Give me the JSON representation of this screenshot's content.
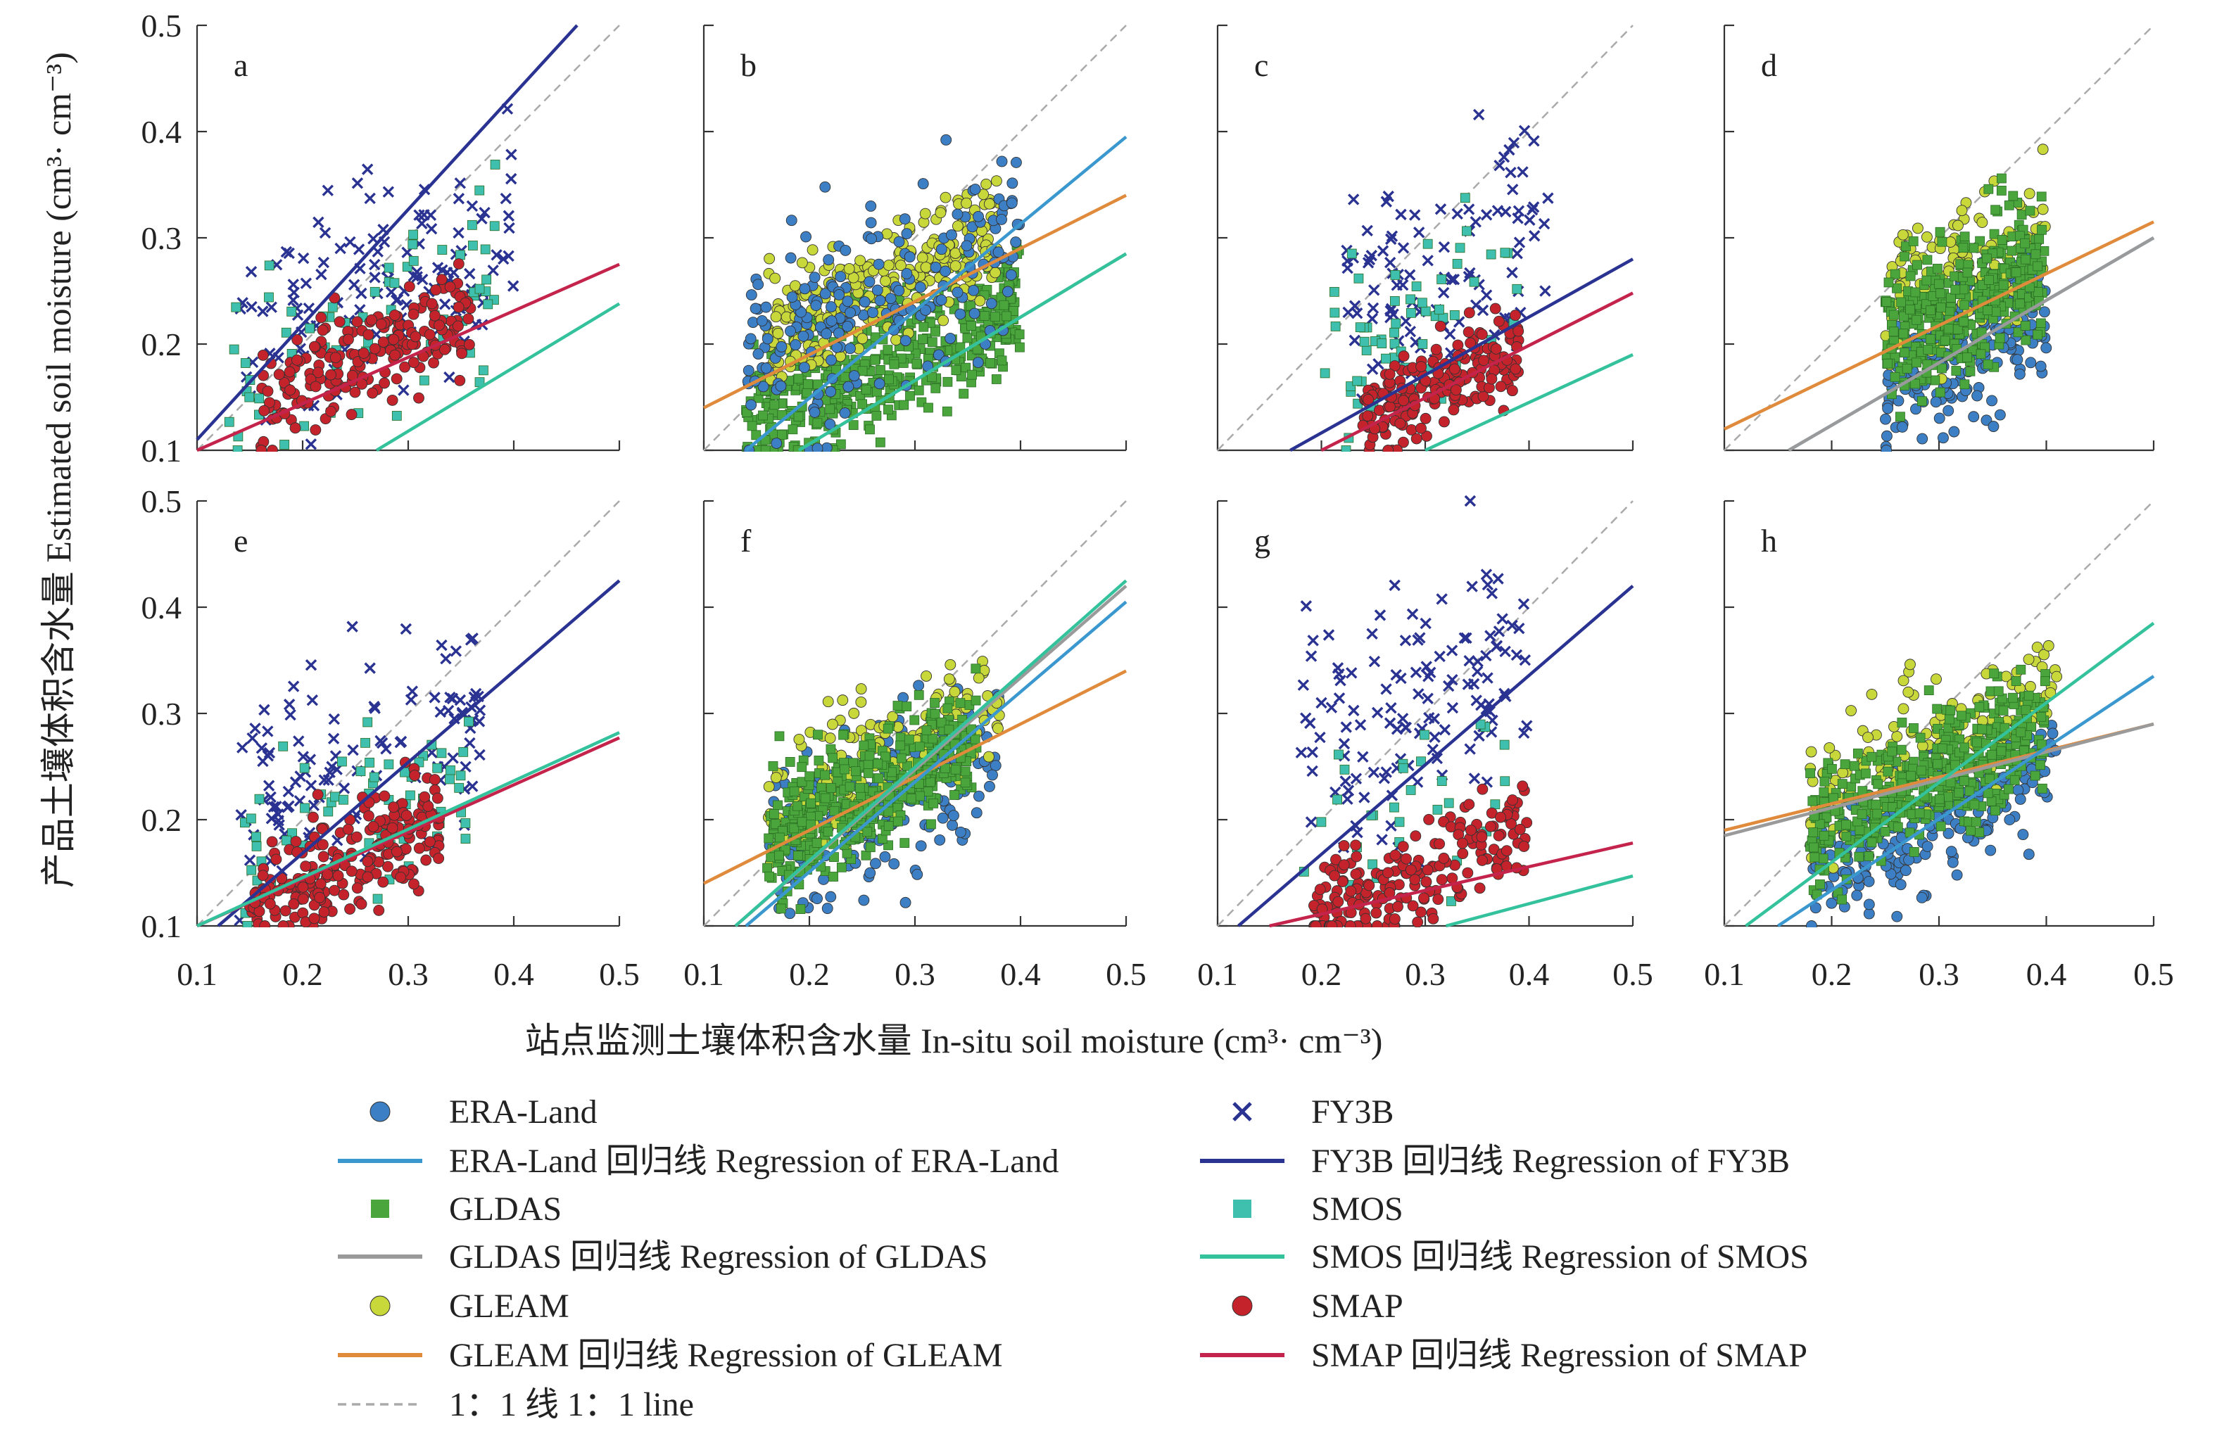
{
  "colors": {
    "ERA-Land": "#3d7fc4",
    "ERA-Land-line": "#3b98cf",
    "GLDAS": "#4aa63c",
    "GLDAS-line": "#9a9a9a",
    "GLEAM": "#c8d83a",
    "GLEAM-line": "#e08a3c",
    "FY3B": "#2a3391",
    "FY3B-line": "#2a3391",
    "SMOS": "#3fbfae",
    "SMOS-line": "#33c29c",
    "SMAP": "#c4232b",
    "SMAP-line": "#c4234b",
    "one-to-one": "#aaaaaa"
  },
  "axes": {
    "ylabel": "产品土壤体积含水量 Estimated soil moisture (cm³· cm⁻³)",
    "xlabel": "站点监测土壤体积含水量 In-situ soil moisture (cm³· cm⁻³)",
    "xlim": [
      0.1,
      0.5
    ],
    "ylim": [
      0.1,
      0.5
    ],
    "xticks": [
      "0.1",
      "0.2",
      "0.3",
      "0.4",
      "0.5"
    ],
    "yticks": [
      "0.1",
      "0.2",
      "0.3",
      "0.4",
      "0.5"
    ]
  },
  "legend": {
    "items": [
      {
        "key": "ERA-Land",
        "marker": "circle",
        "label": "ERA-Land"
      },
      {
        "key": "FY3B",
        "marker": "cross",
        "label": "FY3B"
      },
      {
        "key": "ERA-Land-line",
        "marker": "line",
        "label": "ERA-Land 回归线 Regression of ERA-Land"
      },
      {
        "key": "FY3B-line",
        "marker": "line",
        "label": "FY3B 回归线 Regression of FY3B"
      },
      {
        "key": "GLDAS",
        "marker": "square",
        "label": "GLDAS"
      },
      {
        "key": "SMOS",
        "marker": "square",
        "label": "SMOS"
      },
      {
        "key": "GLDAS-line",
        "marker": "line",
        "label": "GLDAS 回归线 Regression of GLDAS"
      },
      {
        "key": "SMOS-line",
        "marker": "line",
        "label": "SMOS 回归线 Regression of SMOS"
      },
      {
        "key": "GLEAM",
        "marker": "circle",
        "label": "GLEAM"
      },
      {
        "key": "SMAP",
        "marker": "circle",
        "label": "SMAP"
      },
      {
        "key": "GLEAM-line",
        "marker": "line",
        "label": "GLEAM 回归线 Regression of GLEAM"
      },
      {
        "key": "SMAP-line",
        "marker": "line",
        "label": "SMAP 回归线 Regression of SMAP"
      },
      {
        "key": "one-to-one",
        "marker": "dash",
        "label": "1：1 线 1：1 line"
      }
    ]
  },
  "chart_data": [
    {
      "type": "scatter",
      "label": "a",
      "xlim": [
        0.1,
        0.5
      ],
      "ylim": [
        0.1,
        0.5
      ],
      "clouds": [
        {
          "key": "FY3B",
          "marker": "cross",
          "n": 130,
          "xr": [
            0.14,
            0.4
          ],
          "center": 0.25,
          "spread": 0.1
        },
        {
          "key": "SMOS",
          "marker": "square",
          "n": 70,
          "xr": [
            0.13,
            0.39
          ],
          "center": 0.22,
          "spread": 0.09
        },
        {
          "key": "SMAP",
          "marker": "circle",
          "n": 200,
          "xr": [
            0.16,
            0.36
          ],
          "center": 0.19,
          "spread": 0.05
        }
      ],
      "regressions": [
        {
          "key": "FY3B-line",
          "points": [
            [
              0.1,
              0.11
            ],
            [
              0.46,
              0.5
            ]
          ]
        },
        {
          "key": "SMAP-line",
          "points": [
            [
              0.1,
              0.1
            ],
            [
              0.5,
              0.275
            ]
          ]
        },
        {
          "key": "SMOS-line",
          "points": [
            [
              0.27,
              0.1
            ],
            [
              0.5,
              0.238
            ]
          ]
        }
      ]
    },
    {
      "type": "scatter",
      "label": "b",
      "xlim": [
        0.1,
        0.5
      ],
      "ylim": [
        0.1,
        0.5
      ],
      "clouds": [
        {
          "key": "GLDAS",
          "marker": "square",
          "n": 450,
          "xr": [
            0.14,
            0.4
          ],
          "center": 0.18,
          "spread": 0.06
        },
        {
          "key": "GLEAM",
          "marker": "circle",
          "n": 260,
          "xr": [
            0.16,
            0.38
          ],
          "center": 0.26,
          "spread": 0.06
        },
        {
          "key": "ERA-Land",
          "marker": "circle",
          "n": 200,
          "xr": [
            0.14,
            0.4
          ],
          "center": 0.24,
          "spread": 0.09
        }
      ],
      "regressions": [
        {
          "key": "GLEAM-line",
          "points": [
            [
              0.1,
              0.14
            ],
            [
              0.5,
              0.34
            ]
          ]
        },
        {
          "key": "ERA-Land-line",
          "points": [
            [
              0.14,
              0.1
            ],
            [
              0.5,
              0.395
            ]
          ]
        },
        {
          "key": "GLDAS-line",
          "points": [
            [
              0.19,
              0.1
            ],
            [
              0.5,
              0.285
            ]
          ]
        },
        {
          "key": "SMOS-line",
          "points": [
            [
              0.19,
              0.1
            ],
            [
              0.5,
              0.285
            ]
          ]
        }
      ]
    },
    {
      "type": "scatter",
      "label": "c",
      "xlim": [
        0.1,
        0.5
      ],
      "ylim": [
        0.1,
        0.5
      ],
      "clouds": [
        {
          "key": "FY3B",
          "marker": "cross",
          "n": 110,
          "xr": [
            0.22,
            0.42
          ],
          "center": 0.28,
          "spread": 0.1
        },
        {
          "key": "SMOS",
          "marker": "square",
          "n": 60,
          "xr": [
            0.2,
            0.4
          ],
          "center": 0.22,
          "spread": 0.1
        },
        {
          "key": "SMAP",
          "marker": "circle",
          "n": 200,
          "xr": [
            0.24,
            0.39
          ],
          "center": 0.16,
          "spread": 0.04
        }
      ],
      "regressions": [
        {
          "key": "FY3B-line",
          "points": [
            [
              0.17,
              0.1
            ],
            [
              0.5,
              0.28
            ]
          ]
        },
        {
          "key": "SMAP-line",
          "points": [
            [
              0.2,
              0.1
            ],
            [
              0.5,
              0.248
            ]
          ]
        },
        {
          "key": "SMOS-line",
          "points": [
            [
              0.3,
              0.1
            ],
            [
              0.5,
              0.19
            ]
          ]
        }
      ]
    },
    {
      "type": "scatter",
      "label": "d",
      "xlim": [
        0.1,
        0.5
      ],
      "ylim": [
        0.1,
        0.5
      ],
      "clouds": [
        {
          "key": "ERA-Land",
          "marker": "circle",
          "n": 220,
          "xr": [
            0.25,
            0.4
          ],
          "center": 0.2,
          "spread": 0.07
        },
        {
          "key": "GLEAM",
          "marker": "circle",
          "n": 150,
          "xr": [
            0.25,
            0.4
          ],
          "center": 0.27,
          "spread": 0.07
        },
        {
          "key": "GLDAS",
          "marker": "square",
          "n": 350,
          "xr": [
            0.25,
            0.4
          ],
          "center": 0.24,
          "spread": 0.07
        }
      ],
      "regressions": [
        {
          "key": "GLEAM-line",
          "points": [
            [
              0.1,
              0.12
            ],
            [
              0.5,
              0.315
            ]
          ]
        },
        {
          "key": "ERA-Land-line",
          "points": [
            [
              0.16,
              0.1
            ],
            [
              0.5,
              0.3
            ]
          ]
        },
        {
          "key": "GLDAS-line",
          "points": [
            [
              0.16,
              0.1
            ],
            [
              0.5,
              0.3
            ]
          ]
        }
      ]
    },
    {
      "type": "scatter",
      "label": "e",
      "xlim": [
        0.1,
        0.5
      ],
      "ylim": [
        0.1,
        0.5
      ],
      "clouds": [
        {
          "key": "FY3B",
          "marker": "cross",
          "n": 110,
          "xr": [
            0.14,
            0.37
          ],
          "center": 0.26,
          "spread": 0.1
        },
        {
          "key": "SMOS",
          "marker": "square",
          "n": 70,
          "xr": [
            0.14,
            0.36
          ],
          "center": 0.2,
          "spread": 0.08
        },
        {
          "key": "SMAP",
          "marker": "circle",
          "n": 220,
          "xr": [
            0.15,
            0.33
          ],
          "center": 0.16,
          "spread": 0.05
        }
      ],
      "regressions": [
        {
          "key": "FY3B-line",
          "points": [
            [
              0.12,
              0.1
            ],
            [
              0.5,
              0.425
            ]
          ]
        },
        {
          "key": "SMAP-line",
          "points": [
            [
              0.1,
              0.1
            ],
            [
              0.5,
              0.277
            ]
          ]
        },
        {
          "key": "SMOS-line",
          "points": [
            [
              0.1,
              0.1
            ],
            [
              0.5,
              0.282
            ]
          ]
        }
      ]
    },
    {
      "type": "scatter",
      "label": "f",
      "xlim": [
        0.1,
        0.5
      ],
      "ylim": [
        0.1,
        0.5
      ],
      "clouds": [
        {
          "key": "ERA-Land",
          "marker": "circle",
          "n": 200,
          "xr": [
            0.16,
            0.38
          ],
          "center": 0.22,
          "spread": 0.08
        },
        {
          "key": "GLEAM",
          "marker": "circle",
          "n": 160,
          "xr": [
            0.16,
            0.38
          ],
          "center": 0.26,
          "spread": 0.06
        },
        {
          "key": "GLDAS",
          "marker": "square",
          "n": 400,
          "xr": [
            0.16,
            0.36
          ],
          "center": 0.23,
          "spread": 0.06
        }
      ],
      "regressions": [
        {
          "key": "GLEAM-line",
          "points": [
            [
              0.1,
              0.14
            ],
            [
              0.5,
              0.34
            ]
          ]
        },
        {
          "key": "ERA-Land-line",
          "points": [
            [
              0.14,
              0.1
            ],
            [
              0.5,
              0.405
            ]
          ]
        },
        {
          "key": "GLDAS-line",
          "points": [
            [
              0.13,
              0.1
            ],
            [
              0.5,
              0.42
            ]
          ]
        },
        {
          "key": "SMOS-line",
          "points": [
            [
              0.13,
              0.1
            ],
            [
              0.5,
              0.425
            ]
          ]
        }
      ]
    },
    {
      "type": "scatter",
      "label": "g",
      "xlim": [
        0.1,
        0.5
      ],
      "ylim": [
        0.1,
        0.5
      ],
      "clouds": [
        {
          "key": "FY3B",
          "marker": "cross",
          "n": 130,
          "xr": [
            0.18,
            0.4
          ],
          "center": 0.3,
          "spread": 0.12
        },
        {
          "key": "SMOS",
          "marker": "square",
          "n": 30,
          "xr": [
            0.18,
            0.38
          ],
          "center": 0.2,
          "spread": 0.1
        },
        {
          "key": "SMAP",
          "marker": "circle",
          "n": 200,
          "xr": [
            0.19,
            0.4
          ],
          "center": 0.15,
          "spread": 0.05
        }
      ],
      "regressions": [
        {
          "key": "FY3B-line",
          "points": [
            [
              0.12,
              0.1
            ],
            [
              0.5,
              0.42
            ]
          ]
        },
        {
          "key": "SMAP-line",
          "points": [
            [
              0.15,
              0.1
            ],
            [
              0.5,
              0.178
            ]
          ]
        },
        {
          "key": "SMOS-line",
          "points": [
            [
              0.32,
              0.1
            ],
            [
              0.5,
              0.147
            ]
          ]
        }
      ]
    },
    {
      "type": "scatter",
      "label": "h",
      "xlim": [
        0.1,
        0.5
      ],
      "ylim": [
        0.1,
        0.5
      ],
      "clouds": [
        {
          "key": "ERA-Land",
          "marker": "circle",
          "n": 220,
          "xr": [
            0.18,
            0.41
          ],
          "center": 0.2,
          "spread": 0.06
        },
        {
          "key": "GLEAM",
          "marker": "circle",
          "n": 160,
          "xr": [
            0.18,
            0.41
          ],
          "center": 0.27,
          "spread": 0.06
        },
        {
          "key": "GLDAS",
          "marker": "square",
          "n": 400,
          "xr": [
            0.18,
            0.4
          ],
          "center": 0.24,
          "spread": 0.06
        }
      ],
      "regressions": [
        {
          "key": "GLEAM-line",
          "points": [
            [
              0.1,
              0.19
            ],
            [
              0.5,
              0.29
            ]
          ]
        },
        {
          "key": "GLDAS-line",
          "points": [
            [
              0.1,
              0.185
            ],
            [
              0.5,
              0.29
            ]
          ]
        },
        {
          "key": "ERA-Land-line",
          "points": [
            [
              0.15,
              0.1
            ],
            [
              0.5,
              0.335
            ]
          ]
        },
        {
          "key": "SMOS-line",
          "points": [
            [
              0.12,
              0.1
            ],
            [
              0.5,
              0.385
            ]
          ]
        }
      ]
    }
  ]
}
